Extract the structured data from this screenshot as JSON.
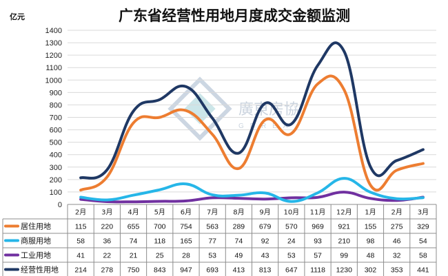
{
  "chart_data": {
    "type": "line",
    "title": "广东省经营性用地月度成交金额监测",
    "ylabel": "亿元",
    "ylim": [
      0,
      1400
    ],
    "ytick_step": 100,
    "grid": true,
    "categories": [
      "2月",
      "3月",
      "4月",
      "5月",
      "6月",
      "7月",
      "8月",
      "9月",
      "10月",
      "11月",
      "12月",
      "1月",
      "2月",
      "3月"
    ],
    "series": [
      {
        "name": "居住用地",
        "color": "#ed7d31",
        "values": [
          115,
          220,
          655,
          700,
          754,
          563,
          289,
          679,
          570,
          969,
          921,
          155,
          275,
          329
        ]
      },
      {
        "name": "商服用地",
        "color": "#26b6e8",
        "values": [
          58,
          36,
          74,
          118,
          165,
          77,
          74,
          92,
          24,
          93,
          210,
          98,
          46,
          54
        ]
      },
      {
        "name": "工业用地",
        "color": "#7030a0",
        "values": [
          41,
          22,
          21,
          25,
          28,
          53,
          49,
          43,
          53,
          57,
          99,
          48,
          32,
          58
        ]
      },
      {
        "name": "经营性用地",
        "color": "#1f3864",
        "values": [
          214,
          278,
          750,
          843,
          947,
          693,
          413,
          813,
          647,
          1118,
          1230,
          302,
          353,
          441
        ]
      }
    ]
  },
  "watermark": {
    "name": "廣東房協",
    "subtitle": "GDREA"
  }
}
